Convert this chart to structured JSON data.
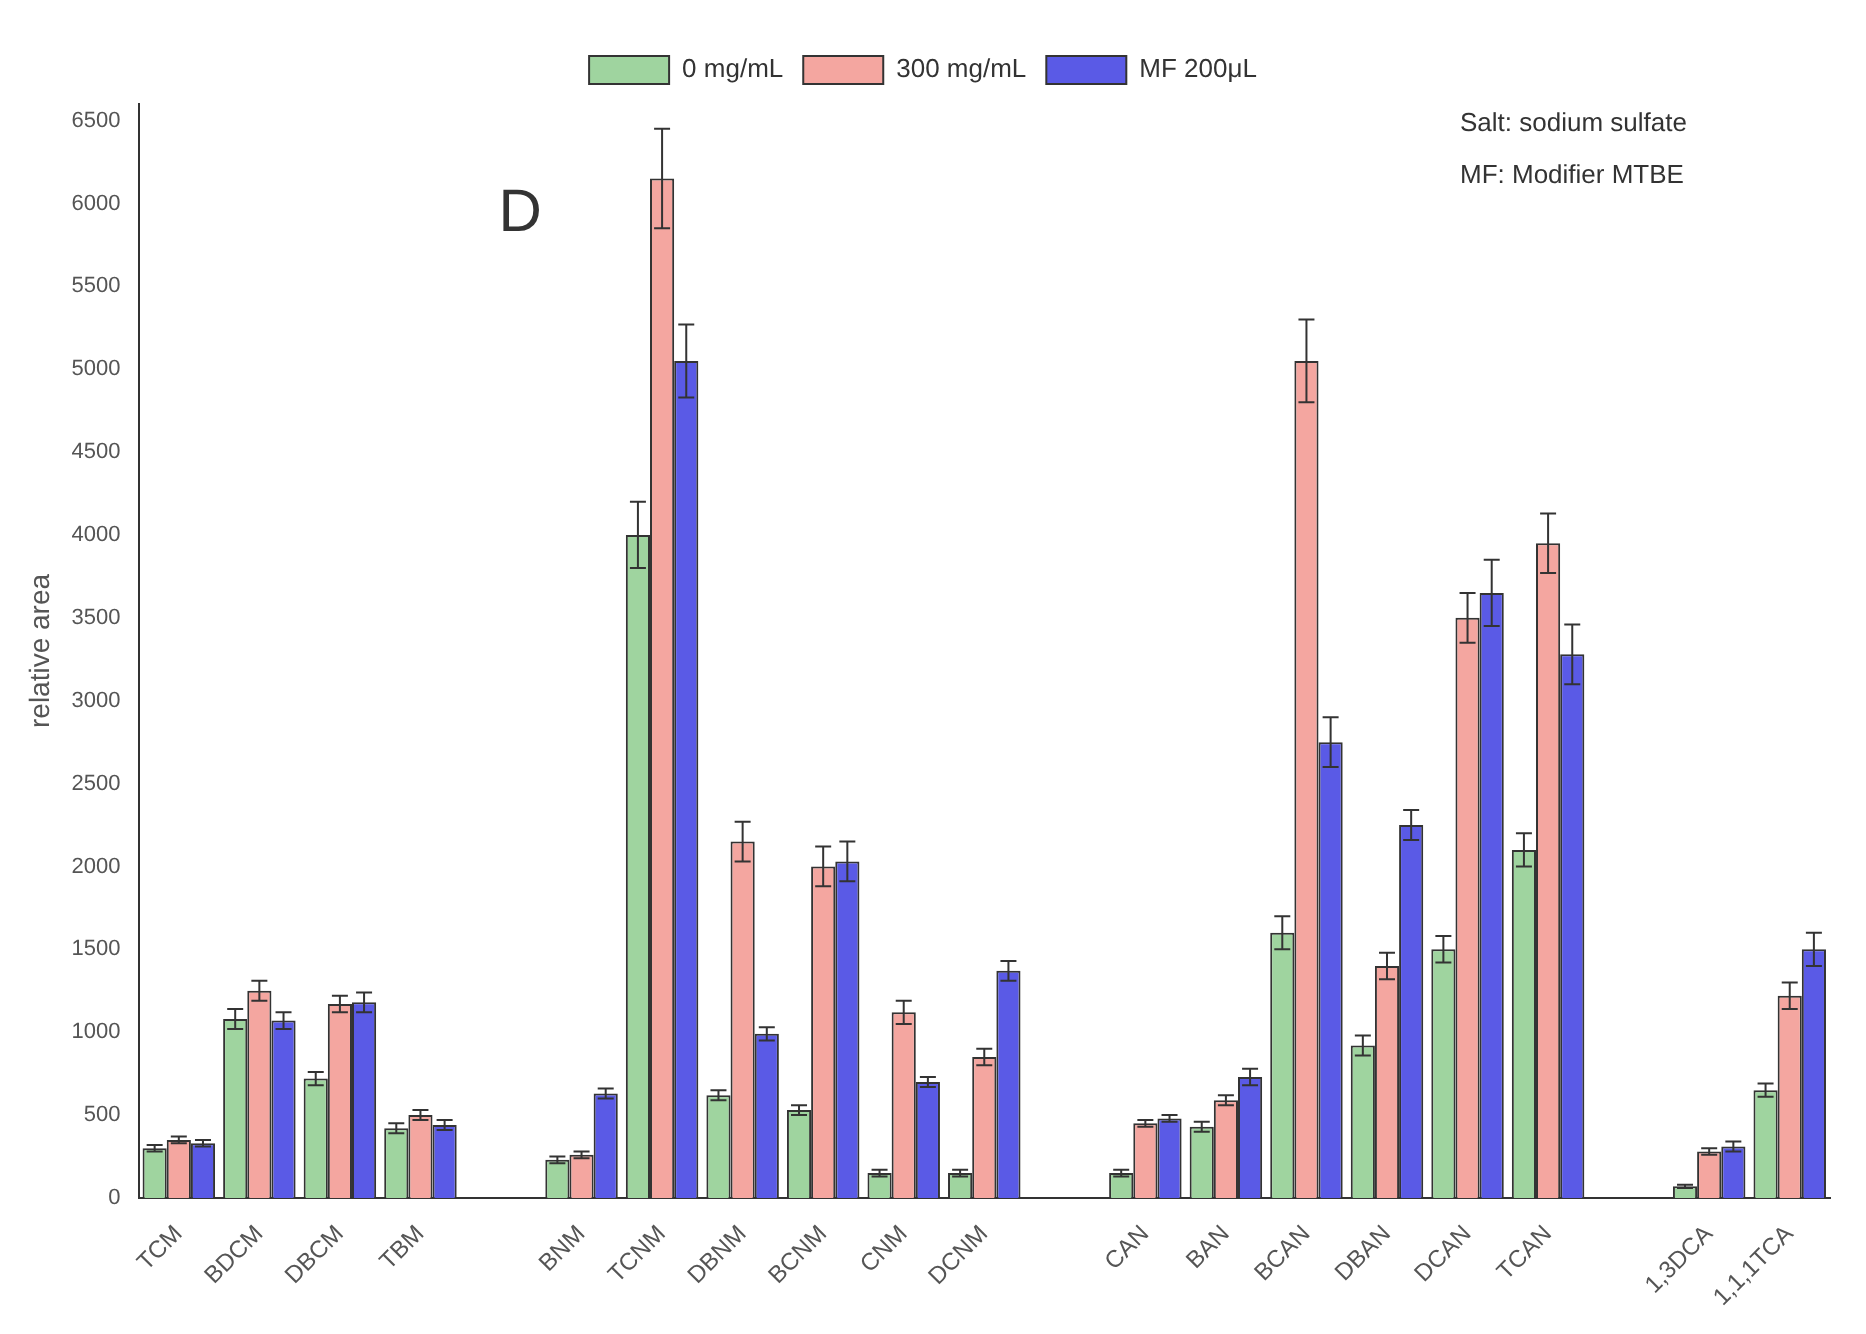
{
  "chart_data": {
    "type": "bar",
    "ylabel": "relative area",
    "categories": [
      "TCM",
      "BDCM",
      "DBCM",
      "TBM",
      null,
      "BNM",
      "TCNM",
      "DBNM",
      "BCNM",
      "CNM",
      "DCNM",
      null,
      "CAN",
      "BAN",
      "BCAN",
      "DBAN",
      "DCAN",
      "TCAN",
      null,
      "1,3DCA",
      "1,1,1TCA"
    ],
    "series": [
      {
        "name": "0 mg/mL",
        "color": "#9fd49f",
        "values": [
          300,
          1080,
          720,
          420,
          null,
          230,
          4000,
          620,
          530,
          150,
          150,
          null,
          150,
          430,
          1600,
          920,
          1500,
          2100,
          null,
          70,
          650
        ],
        "errors": [
          20,
          60,
          40,
          30,
          null,
          20,
          200,
          30,
          30,
          20,
          20,
          null,
          20,
          30,
          100,
          60,
          80,
          100,
          null,
          10,
          40
        ]
      },
      {
        "name": "300 mg/mL",
        "color": "#f4a6a0",
        "values": [
          350,
          1250,
          1170,
          500,
          null,
          260,
          6150,
          2150,
          2000,
          1120,
          850,
          null,
          450,
          590,
          5050,
          1400,
          3500,
          3950,
          null,
          280,
          1220
        ],
        "errors": [
          20,
          60,
          50,
          30,
          null,
          20,
          300,
          120,
          120,
          70,
          50,
          null,
          20,
          30,
          250,
          80,
          150,
          180,
          null,
          20,
          80
        ]
      },
      {
        "name": "MF 200μL",
        "color": "#5a5ae6",
        "values": [
          330,
          1070,
          1180,
          440,
          null,
          630,
          5050,
          990,
          2030,
          700,
          1370,
          null,
          480,
          730,
          2750,
          2250,
          3650,
          3280,
          null,
          310,
          1500
        ],
        "errors": [
          20,
          50,
          60,
          30,
          null,
          30,
          220,
          40,
          120,
          30,
          60,
          null,
          20,
          50,
          150,
          90,
          200,
          180,
          null,
          30,
          100
        ]
      }
    ],
    "ylim": [
      0,
      6600
    ],
    "yticks": [
      0,
      500,
      1000,
      1500,
      2000,
      2500,
      3000,
      3500,
      4000,
      4500,
      5000,
      5500,
      6000,
      6500
    ],
    "grid": false,
    "legend": "top",
    "annotations": [
      "D",
      "Salt: sodium sulfate",
      "MF: Modifier MTBE"
    ]
  }
}
